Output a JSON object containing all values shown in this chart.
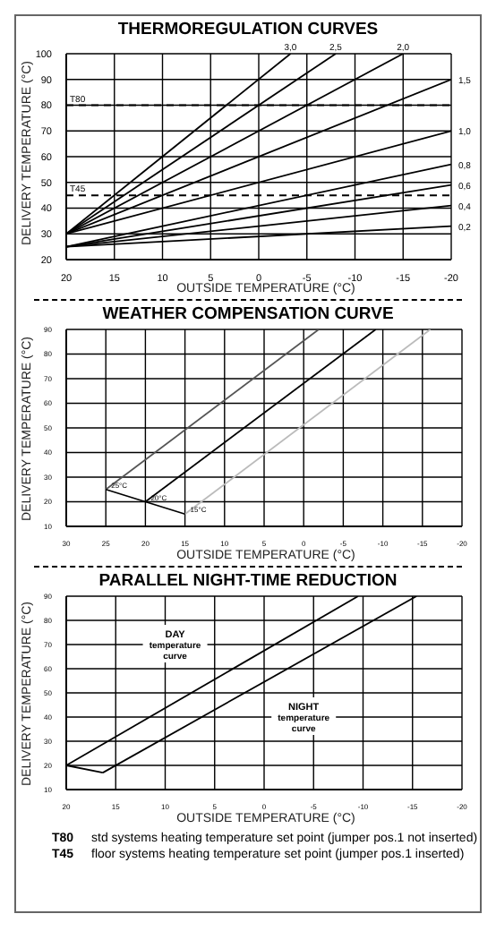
{
  "chart_data": [
    {
      "type": "line",
      "title": "THERMOREGULATION CURVES",
      "xlabel": "OUTSIDE TEMPERATURE (°C)",
      "ylabel": "DELIVERY TEMPERATURE (°C)",
      "xlim": [
        20,
        -20
      ],
      "xticks": [
        20,
        15,
        10,
        5,
        0,
        -5,
        -10,
        -15,
        -20
      ],
      "ylim": [
        20,
        100
      ],
      "yticks": [
        20,
        30,
        40,
        50,
        60,
        70,
        80,
        90,
        100
      ],
      "grid": true,
      "marker": "none",
      "line_style": "solid",
      "ref_lines": [
        {
          "axis": "y",
          "value": 80,
          "label": "T80",
          "line_style": "dashed",
          "color": "#000000"
        },
        {
          "axis": "y",
          "value": 45,
          "label": "T45",
          "line_style": "dashed",
          "color": "#000000"
        }
      ],
      "series": [
        {
          "name": "3,0",
          "color": "#000000",
          "x": [
            20,
            -3.3
          ],
          "values": [
            30,
            100
          ]
        },
        {
          "name": "2,5",
          "color": "#000000",
          "x": [
            20,
            -8
          ],
          "values": [
            30,
            100
          ]
        },
        {
          "name": "2,0",
          "color": "#000000",
          "x": [
            20,
            -15
          ],
          "values": [
            30,
            100
          ]
        },
        {
          "name": "1,5",
          "color": "#000000",
          "x": [
            20,
            -20
          ],
          "values": [
            30,
            90
          ]
        },
        {
          "name": "1,0",
          "color": "#000000",
          "x": [
            20,
            -20
          ],
          "values": [
            30,
            70
          ]
        },
        {
          "name": "0,8",
          "color": "#000000",
          "x": [
            20,
            -20
          ],
          "values": [
            25,
            57
          ]
        },
        {
          "name": "0,6",
          "color": "#000000",
          "x": [
            20,
            -20
          ],
          "values": [
            25,
            49
          ]
        },
        {
          "name": "0,4",
          "color": "#000000",
          "x": [
            20,
            -20
          ],
          "values": [
            25,
            41
          ]
        },
        {
          "name": "0,2",
          "color": "#000000",
          "x": [
            20,
            -20
          ],
          "values": [
            25,
            33
          ]
        }
      ]
    },
    {
      "type": "line",
      "title": "WEATHER COMPENSATION CURVE",
      "xlabel": "OUTSIDE TEMPERATURE (°C)",
      "ylabel": "DELIVERY TEMPERATURE (°C)",
      "xlim": [
        30,
        -20
      ],
      "xticks": [
        30,
        25,
        20,
        15,
        10,
        5,
        0,
        -5,
        -10,
        -15,
        -20
      ],
      "ylim": [
        10,
        90
      ],
      "yticks": [
        10,
        20,
        30,
        40,
        50,
        60,
        70,
        80,
        90
      ],
      "grid": true,
      "marker": "none",
      "line_style": "solid",
      "series": [
        {
          "name": "25°C",
          "color": "#555555",
          "x": [
            -1.9,
            25
          ],
          "values": [
            90,
            25
          ]
        },
        {
          "name": "20°C",
          "color": "#000000",
          "x": [
            -9.1,
            20
          ],
          "values": [
            90,
            20
          ]
        },
        {
          "name": "15°C",
          "color": "#bbbbbb",
          "x": [
            -16,
            15
          ],
          "values": [
            90,
            15
          ]
        },
        {
          "color": "#000000",
          "x": [
            25,
            20,
            15
          ],
          "values": [
            25,
            20,
            15
          ]
        }
      ]
    },
    {
      "type": "line",
      "title": "PARALLEL NIGHT-TIME REDUCTION",
      "xlabel": "OUTSIDE TEMPERATURE (°C)",
      "ylabel": "DELIVERY TEMPERATURE (°C)",
      "xlim": [
        20,
        -20
      ],
      "xticks": [
        20,
        15,
        10,
        5,
        0,
        -5,
        -10,
        -15,
        -20
      ],
      "ylim": [
        10,
        90
      ],
      "yticks": [
        10,
        20,
        30,
        40,
        50,
        60,
        70,
        80,
        90
      ],
      "grid": true,
      "marker": "none",
      "line_style": "solid",
      "series": [
        {
          "color": "#000000",
          "x": [
            20,
            -9.5
          ],
          "values": [
            20,
            90
          ]
        },
        {
          "color": "#000000",
          "x": [
            16.3,
            -15.4
          ],
          "values": [
            17,
            90
          ]
        },
        {
          "color": "#000000",
          "x": [
            20,
            16.3
          ],
          "values": [
            20,
            17
          ]
        }
      ],
      "annotations": [
        {
          "text": "DAY\ntemperature\ncurve",
          "x": 9,
          "y": 70
        },
        {
          "text": "NIGHT\ntemperature\ncurve",
          "x": -4,
          "y": 40
        },
        "T80 std systems heating temperature set point (jumper pos.1 not inserted)",
        "T45 floor systems heating temperature set point (jumper pos.1 inserted)"
      ]
    }
  ]
}
